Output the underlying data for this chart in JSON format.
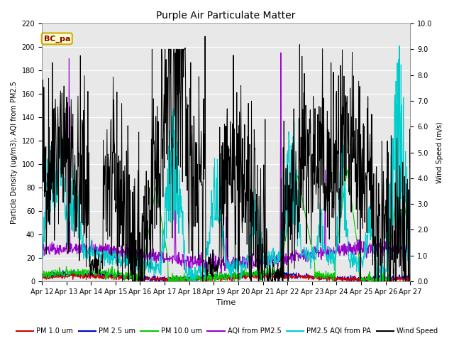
{
  "title": "Purple Air Particulate Matter",
  "xlabel": "Time",
  "ylabel_left": "Particle Density (ug/m3), AQI from PM2.5",
  "ylabel_right": "Wind Speed (m/s)",
  "ylim_left": [
    0,
    220
  ],
  "ylim_right": [
    0,
    10.0
  ],
  "yticks_left": [
    0,
    20,
    40,
    60,
    80,
    100,
    120,
    140,
    160,
    180,
    200,
    220
  ],
  "yticks_right": [
    0.0,
    1.0,
    2.0,
    3.0,
    4.0,
    5.0,
    6.0,
    7.0,
    8.0,
    9.0,
    10.0
  ],
  "x_tick_labels": [
    "Apr 12",
    "Apr 13",
    "Apr 14",
    "Apr 15",
    "Apr 16",
    "Apr 17",
    "Apr 18",
    "Apr 19",
    "Apr 20",
    "Apr 21",
    "Apr 22",
    "Apr 23",
    "Apr 24",
    "Apr 25",
    "Apr 26",
    "Apr 27"
  ],
  "annotation_text": "BC_pa",
  "bg_color": "#ffffff",
  "plot_bg_color": "#e8e8e8",
  "grid_color": "#ffffff",
  "colors": {
    "pm1": "#cc0000",
    "pm25": "#0000cc",
    "pm10": "#00cc00",
    "aqi_pm25": "#9900cc",
    "pm25_aqi_pa": "#00cccc",
    "wind": "#000000"
  },
  "legend_labels": [
    "PM 1.0 um",
    "PM 2.5 um",
    "PM 10.0 um",
    "AQI from PM2.5",
    "PM2.5 AQI from PA",
    "Wind Speed"
  ],
  "n_points": 1080,
  "seed": 42
}
